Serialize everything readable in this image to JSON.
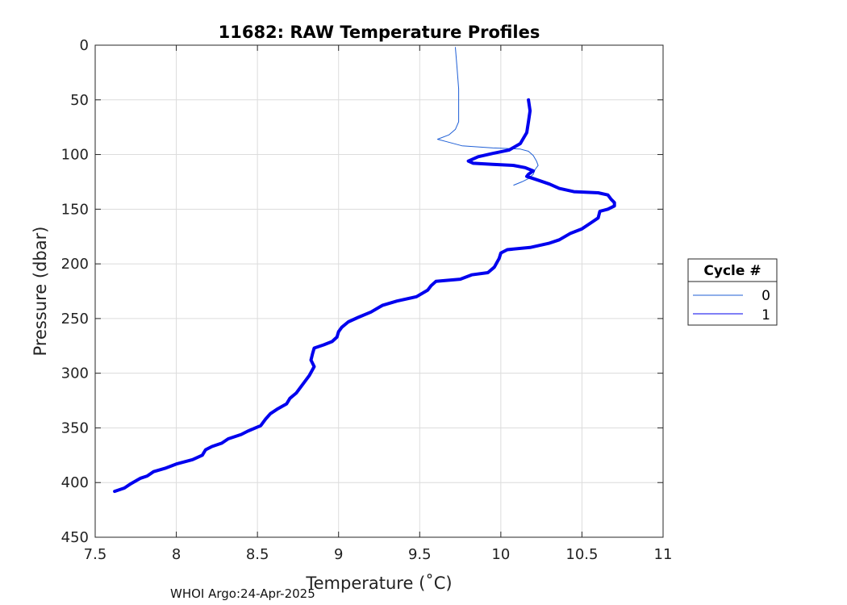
{
  "chart_data": {
    "type": "line",
    "title": "11682: RAW Temperature Profiles",
    "xlabel": "Temperature (˚C)",
    "ylabel": "Pressure (dbar)",
    "xlim": [
      7.5,
      11
    ],
    "ylim": [
      0,
      450
    ],
    "y_reversed": true,
    "x_ticks": [
      "7.5",
      "8",
      "8.5",
      "9",
      "9.5",
      "10",
      "10.5",
      "11"
    ],
    "y_ticks": [
      "0",
      "50",
      "100",
      "150",
      "200",
      "250",
      "300",
      "350",
      "400",
      "450"
    ],
    "grid": true,
    "legend": {
      "title": "Cycle #",
      "placement": "right"
    },
    "footer": "WHOI Argo:24-Apr-2025",
    "series": [
      {
        "name": "0",
        "color": "#1f5fd6",
        "line_weight": "thin",
        "points": [
          [
            9.72,
            2
          ],
          [
            9.73,
            20
          ],
          [
            9.74,
            40
          ],
          [
            9.74,
            60
          ],
          [
            9.74,
            70
          ],
          [
            9.72,
            77
          ],
          [
            9.68,
            82
          ],
          [
            9.61,
            86
          ],
          [
            9.66,
            88
          ],
          [
            9.76,
            92
          ],
          [
            9.95,
            94
          ],
          [
            10.12,
            95
          ],
          [
            10.17,
            97
          ],
          [
            10.2,
            101
          ],
          [
            10.22,
            106
          ],
          [
            10.23,
            110
          ],
          [
            10.21,
            114
          ],
          [
            10.2,
            118
          ],
          [
            10.17,
            122
          ],
          [
            10.13,
            125
          ],
          [
            10.08,
            128
          ]
        ]
      },
      {
        "name": "1",
        "color": "#0000ee",
        "line_weight": "thick",
        "points": [
          [
            10.17,
            50
          ],
          [
            10.18,
            60
          ],
          [
            10.17,
            70
          ],
          [
            10.16,
            80
          ],
          [
            10.12,
            90
          ],
          [
            10.05,
            96
          ],
          [
            9.95,
            99
          ],
          [
            9.86,
            102
          ],
          [
            9.8,
            106
          ],
          [
            9.83,
            108
          ],
          [
            9.95,
            109
          ],
          [
            10.08,
            110
          ],
          [
            10.15,
            112
          ],
          [
            10.2,
            115
          ],
          [
            10.17,
            118
          ],
          [
            10.16,
            120
          ],
          [
            10.22,
            123
          ],
          [
            10.3,
            127
          ],
          [
            10.36,
            131
          ],
          [
            10.45,
            134
          ],
          [
            10.6,
            135
          ],
          [
            10.66,
            137
          ],
          [
            10.68,
            141
          ],
          [
            10.7,
            144
          ],
          [
            10.7,
            147
          ],
          [
            10.66,
            150
          ],
          [
            10.61,
            152
          ],
          [
            10.6,
            158
          ],
          [
            10.56,
            162
          ],
          [
            10.5,
            168
          ],
          [
            10.43,
            172
          ],
          [
            10.36,
            178
          ],
          [
            10.3,
            181
          ],
          [
            10.18,
            185
          ],
          [
            10.04,
            187
          ],
          [
            10.0,
            190
          ],
          [
            9.99,
            195
          ],
          [
            9.96,
            203
          ],
          [
            9.92,
            208
          ],
          [
            9.82,
            210
          ],
          [
            9.75,
            214
          ],
          [
            9.6,
            216
          ],
          [
            9.57,
            220
          ],
          [
            9.55,
            224
          ],
          [
            9.48,
            230
          ],
          [
            9.36,
            234
          ],
          [
            9.27,
            238
          ],
          [
            9.2,
            244
          ],
          [
            9.12,
            249
          ],
          [
            9.06,
            253
          ],
          [
            9.02,
            258
          ],
          [
            9.0,
            262
          ],
          [
            8.99,
            267
          ],
          [
            8.96,
            271
          ],
          [
            8.91,
            274
          ],
          [
            8.85,
            277
          ],
          [
            8.84,
            282
          ],
          [
            8.83,
            288
          ],
          [
            8.85,
            294
          ],
          [
            8.82,
            302
          ],
          [
            8.78,
            310
          ],
          [
            8.74,
            318
          ],
          [
            8.7,
            323
          ],
          [
            8.68,
            328
          ],
          [
            8.62,
            333
          ],
          [
            8.58,
            337
          ],
          [
            8.55,
            342
          ],
          [
            8.52,
            348
          ],
          [
            8.44,
            353
          ],
          [
            8.4,
            356
          ],
          [
            8.32,
            360
          ],
          [
            8.28,
            364
          ],
          [
            8.22,
            367
          ],
          [
            8.18,
            370
          ],
          [
            8.16,
            375
          ],
          [
            8.1,
            379
          ],
          [
            8.0,
            383
          ],
          [
            7.93,
            387
          ],
          [
            7.86,
            390
          ],
          [
            7.82,
            394
          ],
          [
            7.78,
            396
          ],
          [
            7.72,
            401
          ],
          [
            7.68,
            405
          ],
          [
            7.62,
            408
          ]
        ]
      }
    ]
  }
}
